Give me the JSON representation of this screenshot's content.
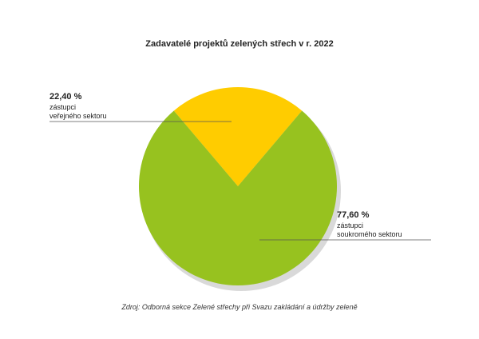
{
  "chart_data": {
    "type": "pie",
    "title": "Zadavatelé projektů zelených střech v r. 2022",
    "categories": [
      "zástupci\nveřejného sektoru",
      "zástupci\nsoukromého sektoru"
    ],
    "values": [
      22.4,
      77.6
    ],
    "value_labels": [
      "22,40 %",
      "77,60 %"
    ],
    "colors": [
      "#ffcc00",
      "#97c21f"
    ],
    "source": "Zdroj: Odborná sekce Zelené střechy při Svazu zakládání a údržby zeleně"
  }
}
